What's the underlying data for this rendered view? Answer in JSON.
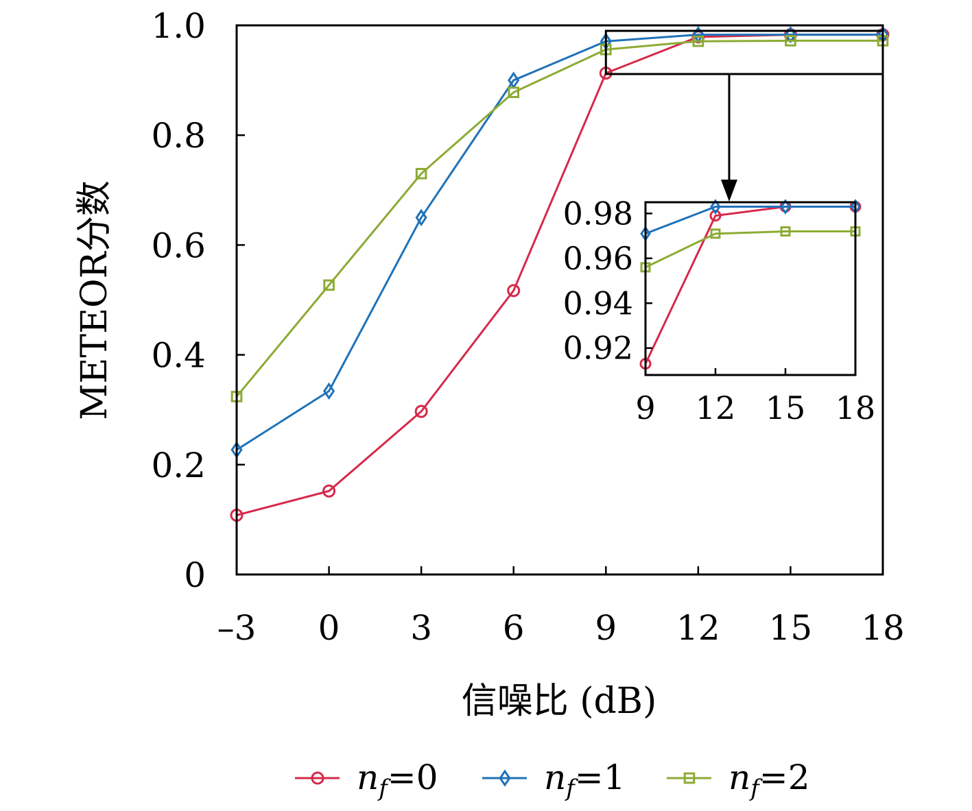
{
  "chart_data": {
    "type": "line",
    "xlabel": "信噪比 (dB)",
    "ylabel": "METEOR分数",
    "x": [
      -3,
      0,
      3,
      6,
      9,
      12,
      15,
      18
    ],
    "x_tick_labels": [
      "–3",
      "0",
      "3",
      "6",
      "9",
      "12",
      "15",
      "18"
    ],
    "xlim": [
      -3,
      18
    ],
    "ylim": [
      0,
      1.0
    ],
    "y_ticks": [
      0,
      0.2,
      0.4,
      0.6,
      0.8,
      1.0
    ],
    "y_tick_labels": [
      "0",
      "0.2",
      "0.4",
      "0.6",
      "0.8",
      "1.0"
    ],
    "grid": false,
    "legend_position": "bottom",
    "series": [
      {
        "name": "n_f=0",
        "legend_base": "n",
        "legend_sub": "f",
        "legend_rest": "=0",
        "color": "#d6294a",
        "marker": "circle",
        "values": [
          0.108,
          0.152,
          0.297,
          0.517,
          0.913,
          0.979,
          0.983,
          0.983
        ]
      },
      {
        "name": "n_f=1",
        "legend_base": "n",
        "legend_sub": "f",
        "legend_rest": "=1",
        "color": "#1f72b8",
        "marker": "diamond",
        "values": [
          0.227,
          0.334,
          0.65,
          0.9,
          0.971,
          0.983,
          0.983,
          0.983
        ]
      },
      {
        "name": "n_f=2",
        "legend_base": "n",
        "legend_sub": "f",
        "legend_rest": "=2",
        "color": "#8cab34",
        "marker": "square",
        "values": [
          0.324,
          0.527,
          0.73,
          0.878,
          0.956,
          0.971,
          0.972,
          0.972
        ]
      }
    ],
    "inset": {
      "x_ticks": [
        9,
        12,
        15,
        18
      ],
      "x_tick_labels": [
        "9",
        "12",
        "15",
        "18"
      ],
      "xlim": [
        9,
        18
      ],
      "ylim": [
        0.908,
        0.985
      ],
      "y_ticks": [
        0.92,
        0.94,
        0.96,
        0.98
      ],
      "y_tick_labels": [
        "0.92",
        "0.94",
        "0.96",
        "0.98"
      ]
    }
  }
}
